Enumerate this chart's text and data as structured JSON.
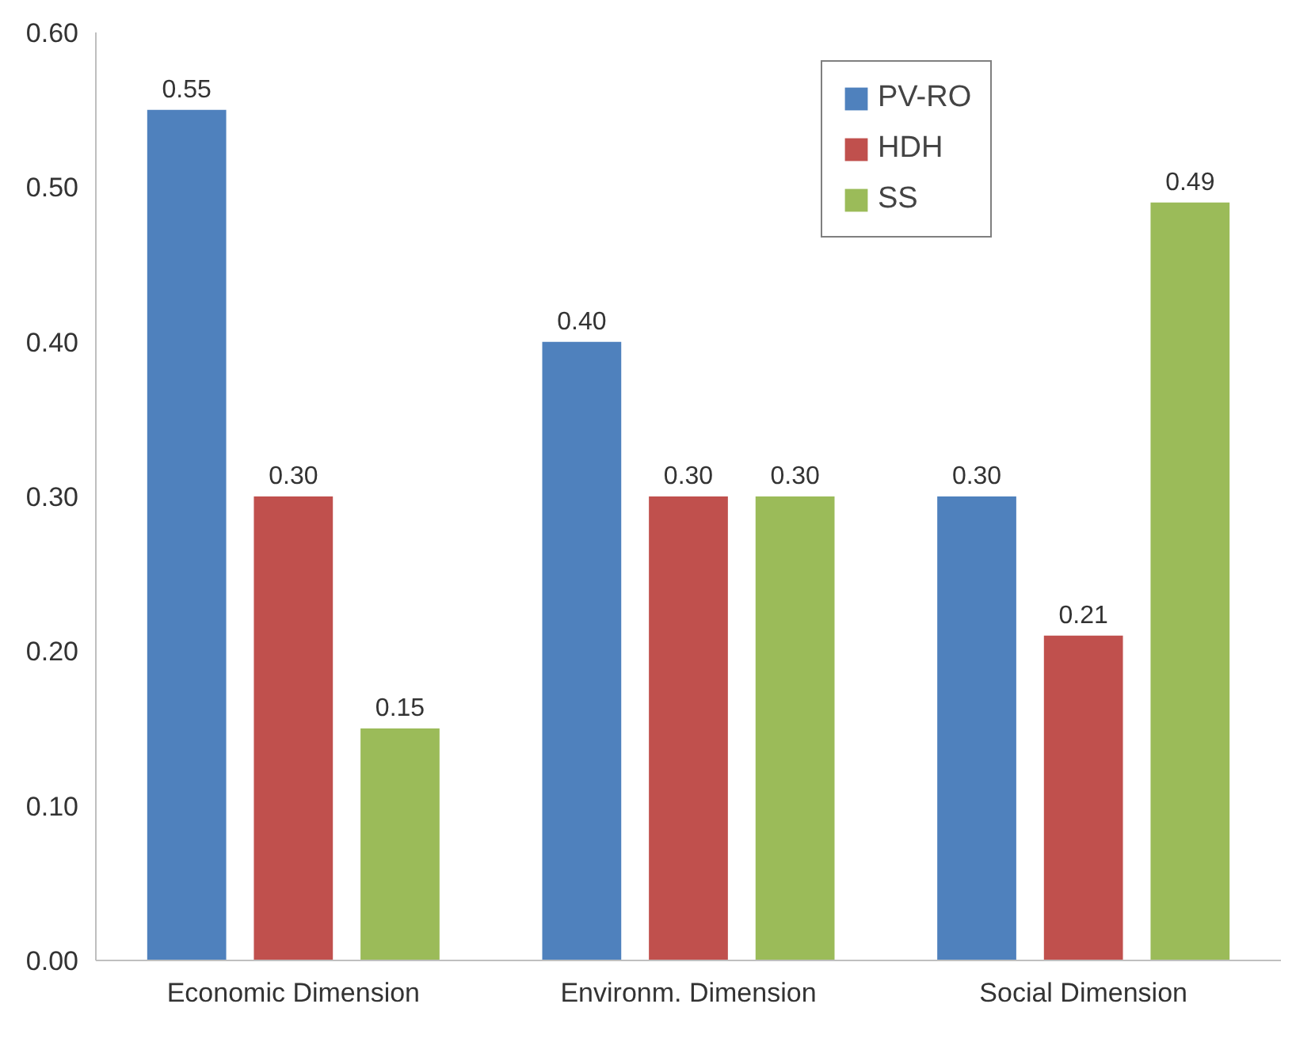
{
  "chart_data": {
    "type": "bar",
    "categories": [
      "Economic Dimension",
      "Environm. Dimension",
      "Social Dimension"
    ],
    "series": [
      {
        "name": "PV-RO",
        "color": "#4f81bd",
        "values": [
          0.55,
          0.4,
          0.3
        ],
        "value_labels": [
          "0.55",
          "0.40",
          "0.30"
        ]
      },
      {
        "name": "HDH",
        "color": "#c0504d",
        "values": [
          0.3,
          0.3,
          0.21
        ],
        "value_labels": [
          "0.30",
          "0.30",
          "0.21"
        ]
      },
      {
        "name": "SS",
        "color": "#9bbb59",
        "values": [
          0.15,
          0.3,
          0.49
        ],
        "value_labels": [
          "0.15",
          "0.30",
          "0.49"
        ]
      }
    ],
    "ylim": [
      0,
      0.6
    ],
    "yticks": [
      {
        "value": 0,
        "label": "0.00"
      },
      {
        "value": 0.1,
        "label": "0.10"
      },
      {
        "value": 0.2,
        "label": "0.20"
      },
      {
        "value": 0.3,
        "label": "0.30"
      },
      {
        "value": 0.4,
        "label": "0.40"
      },
      {
        "value": 0.5,
        "label": "0.50"
      },
      {
        "value": 0.6,
        "label": "0.60"
      }
    ],
    "grid": false,
    "legend": "top right"
  }
}
